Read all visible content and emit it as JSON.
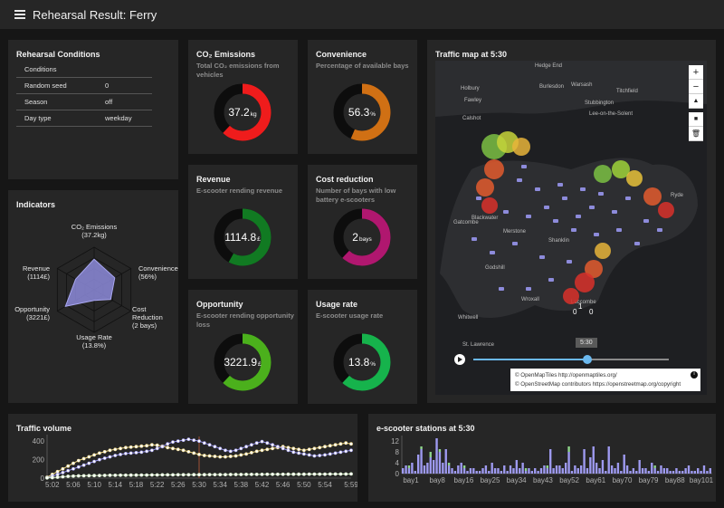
{
  "app": {
    "title": "Rehearsal Result: Ferry"
  },
  "conditions": {
    "title": "Rehearsal Conditions",
    "rows": [
      {
        "key": "Conditions",
        "value": ""
      },
      {
        "key": "Random seed",
        "value": "0"
      },
      {
        "key": "Season",
        "value": "off"
      },
      {
        "key": "Day type",
        "value": "weekday"
      }
    ]
  },
  "indicators": {
    "title": "Indicators",
    "axes": [
      {
        "l1": "CO₂ Emissions",
        "l2": "(37.2kg)"
      },
      {
        "l1": "Convenience",
        "l2": "(56%)"
      },
      {
        "l1": "Cost",
        "l2": "Reduction",
        "l3": "(2 bays)"
      },
      {
        "l1": "Usage Rate",
        "l2": "(13.8%)"
      },
      {
        "l1": "Opportunity",
        "l2": "(3221£)"
      },
      {
        "l1": "Revenue",
        "l2": "(1114£)"
      }
    ],
    "values": [
      0.72,
      0.56,
      0.45,
      0.25,
      0.78,
      0.5
    ]
  },
  "metrics": [
    {
      "title": "CO₂ Emissions",
      "subtitle": "Total CO₂ emissions from vehicles",
      "value": "37.2",
      "unit": "kg",
      "fraction": 0.62,
      "color": "#ef1c1c"
    },
    {
      "title": "Convenience",
      "subtitle": "Percentage of available bays",
      "value": "56.3",
      "unit": "%",
      "fraction": 0.563,
      "color": "#d07014"
    },
    {
      "title": "Revenue",
      "subtitle": "E-scooter rending revenue",
      "value": "1114.8",
      "unit": "£",
      "fraction": 0.58,
      "color": "#117a22"
    },
    {
      "title": "Cost reduction",
      "subtitle": "Number of bays with low battery e-scooters",
      "value": "2",
      "unit": "bays",
      "fraction": 0.62,
      "color": "#b0176f"
    },
    {
      "title": "Opportunity",
      "subtitle": "E-scooter rending opportunity loss",
      "value": "3221.9",
      "unit": "£",
      "fraction": 0.62,
      "color": "#4bb01c"
    },
    {
      "title": "Usage rate",
      "subtitle": "E-scooter usage rate",
      "value": "13.8",
      "unit": "%",
      "fraction": 0.62,
      "color": "#16b34c"
    }
  ],
  "map": {
    "title": "Traffic map at 5:30",
    "time_label": "5:30",
    "controls": {
      "zoom_in": "+",
      "zoom_out": "−",
      "compass": "▲",
      "square": "■",
      "trash": "🗑"
    },
    "attribution": [
      "© OpenMapTiles http://openmaptiles.org/",
      "© OpenStreetMap contributors https://openstreetmap.org/copyright"
    ],
    "info": "i",
    "places": [
      "Hedge End",
      "Burlesdon",
      "Warsash",
      "Holbury",
      "Fawley",
      "Titchfield",
      "Lee-on-the-Solent",
      "Stubbington",
      "Calshot",
      "Gatcombe",
      "Merstone",
      "Shanklin",
      "Godshill",
      "Wroxall",
      "Whitwell",
      "Luccombe",
      "St. Lawrence",
      "Blackwater",
      "Ryde",
      "Wroxall"
    ],
    "markers": [
      {
        "label": "0",
        "sub": "bay101"
      },
      {
        "label": "0",
        "sub": "bay100"
      },
      {
        "label": "1",
        "sub": ""
      }
    ]
  },
  "traffic": {
    "title": "Traffic volume",
    "y_ticks": [
      "400",
      "200",
      "0"
    ],
    "x_ticks": [
      "5:02",
      "5:06",
      "5:10",
      "5:14",
      "5:18",
      "5:22",
      "5:26",
      "5:30",
      "5:34",
      "5:38",
      "5:42",
      "5:46",
      "5:50",
      "5:54",
      "5:59"
    ]
  },
  "stations": {
    "title": "e-scooter stations at 5:30",
    "y_ticks": [
      "12",
      "8",
      "4",
      "0"
    ],
    "x_ticks": [
      "bay1",
      "bay8",
      "bay16",
      "bay25",
      "bay34",
      "bay43",
      "bay52",
      "bay61",
      "bay70",
      "bay79",
      "bay88",
      "bay101"
    ]
  },
  "chart_data": [
    {
      "type": "line",
      "title": "Traffic volume",
      "x": [
        "5:01",
        "5:02",
        "5:03",
        "5:04",
        "5:05",
        "5:06",
        "5:07",
        "5:08",
        "5:09",
        "5:10",
        "5:11",
        "5:12",
        "5:13",
        "5:14",
        "5:15",
        "5:16",
        "5:17",
        "5:18",
        "5:19",
        "5:20",
        "5:21",
        "5:22",
        "5:23",
        "5:24",
        "5:25",
        "5:26",
        "5:27",
        "5:28",
        "5:29",
        "5:30",
        "5:31",
        "5:32",
        "5:33",
        "5:34",
        "5:35",
        "5:36",
        "5:37",
        "5:38",
        "5:39",
        "5:40",
        "5:41",
        "5:42",
        "5:43",
        "5:44",
        "5:45",
        "5:46",
        "5:47",
        "5:48",
        "5:49",
        "5:50",
        "5:51",
        "5:52",
        "5:53",
        "5:54",
        "5:55",
        "5:56",
        "5:57",
        "5:58",
        "5:59"
      ],
      "ylim": [
        0,
        450
      ],
      "series": [
        {
          "color": "#f3dc8a",
          "values": [
            10,
            40,
            70,
            100,
            130,
            160,
            190,
            210,
            230,
            250,
            270,
            285,
            300,
            310,
            320,
            330,
            335,
            340,
            345,
            350,
            360,
            355,
            345,
            330,
            320,
            310,
            300,
            285,
            270,
            255,
            245,
            240,
            235,
            230,
            230,
            235,
            240,
            250,
            260,
            275,
            290,
            300,
            310,
            320,
            330,
            340,
            330,
            320,
            310,
            300,
            310,
            320,
            330,
            340,
            350,
            360,
            370,
            380,
            370
          ]
        },
        {
          "color": "#9e9af0",
          "values": [
            5,
            20,
            40,
            60,
            80,
            100,
            120,
            140,
            160,
            180,
            200,
            215,
            230,
            245,
            255,
            265,
            270,
            275,
            280,
            290,
            300,
            320,
            340,
            370,
            390,
            400,
            410,
            420,
            410,
            400,
            380,
            360,
            340,
            320,
            300,
            290,
            300,
            320,
            340,
            360,
            380,
            395,
            380,
            360,
            340,
            320,
            300,
            280,
            270,
            260,
            250,
            240,
            245,
            250,
            260,
            270,
            280,
            290,
            300
          ]
        },
        {
          "color": "#d8f2c9",
          "values": [
            2,
            5,
            10,
            15,
            20,
            22,
            24,
            25,
            26,
            27,
            28,
            29,
            30,
            30,
            31,
            31,
            32,
            32,
            33,
            33,
            34,
            34,
            35,
            35,
            35,
            36,
            36,
            36,
            37,
            37,
            37,
            38,
            38,
            38,
            38,
            39,
            39,
            39,
            40,
            40,
            40,
            40,
            41,
            41,
            41,
            41,
            42,
            42,
            42,
            42,
            43,
            43,
            43,
            43,
            44,
            44,
            44,
            44,
            45
          ]
        }
      ]
    },
    {
      "type": "bar",
      "title": "e-scooter stations at 5:30",
      "ylim": [
        0,
        13
      ],
      "x_first": "bay1",
      "x_last": "bay101",
      "series": [
        {
          "color": "#9e9af0",
          "values": [
            2,
            3,
            2,
            4,
            1,
            7,
            9,
            3,
            4,
            6,
            5,
            13,
            8,
            4,
            9,
            3,
            2,
            1,
            3,
            4,
            2,
            1,
            2,
            2,
            1,
            1,
            2,
            3,
            1,
            4,
            2,
            2,
            1,
            3,
            1,
            3,
            2,
            5,
            2,
            4,
            1,
            2,
            1,
            2,
            1,
            2,
            3,
            2,
            9,
            2,
            3,
            3,
            2,
            4,
            8,
            1,
            3,
            2,
            3,
            9,
            2,
            6,
            10,
            4,
            2,
            5,
            1,
            10,
            3,
            2,
            4,
            1,
            7,
            3,
            1,
            2,
            1,
            5,
            2,
            2,
            1,
            4,
            2,
            1,
            3,
            2,
            2,
            1,
            1,
            2,
            1,
            1,
            2,
            3,
            1,
            1,
            2,
            1,
            3,
            1,
            2
          ]
        },
        {
          "color": "#8fd68a",
          "values": [
            0,
            0,
            1,
            0,
            0,
            0,
            1,
            0,
            0,
            2,
            0,
            0,
            1,
            0,
            0,
            1,
            0,
            0,
            0,
            0,
            1,
            0,
            0,
            0,
            0,
            0,
            0,
            0,
            0,
            0,
            0,
            0,
            0,
            0,
            0,
            0,
            0,
            0,
            0,
            0,
            1,
            0,
            0,
            0,
            0,
            0,
            0,
            1,
            0,
            0,
            0,
            0,
            0,
            0,
            2,
            0,
            0,
            0,
            0,
            0,
            0,
            0,
            0,
            0,
            0,
            0,
            0,
            0,
            0,
            0,
            0,
            0,
            0,
            0,
            0,
            0,
            0,
            0,
            0,
            0,
            0,
            0,
            1,
            0,
            0,
            0,
            0,
            0,
            0,
            0,
            0,
            0,
            0,
            0,
            0,
            0,
            0,
            0,
            0,
            0,
            0
          ]
        }
      ]
    }
  ]
}
